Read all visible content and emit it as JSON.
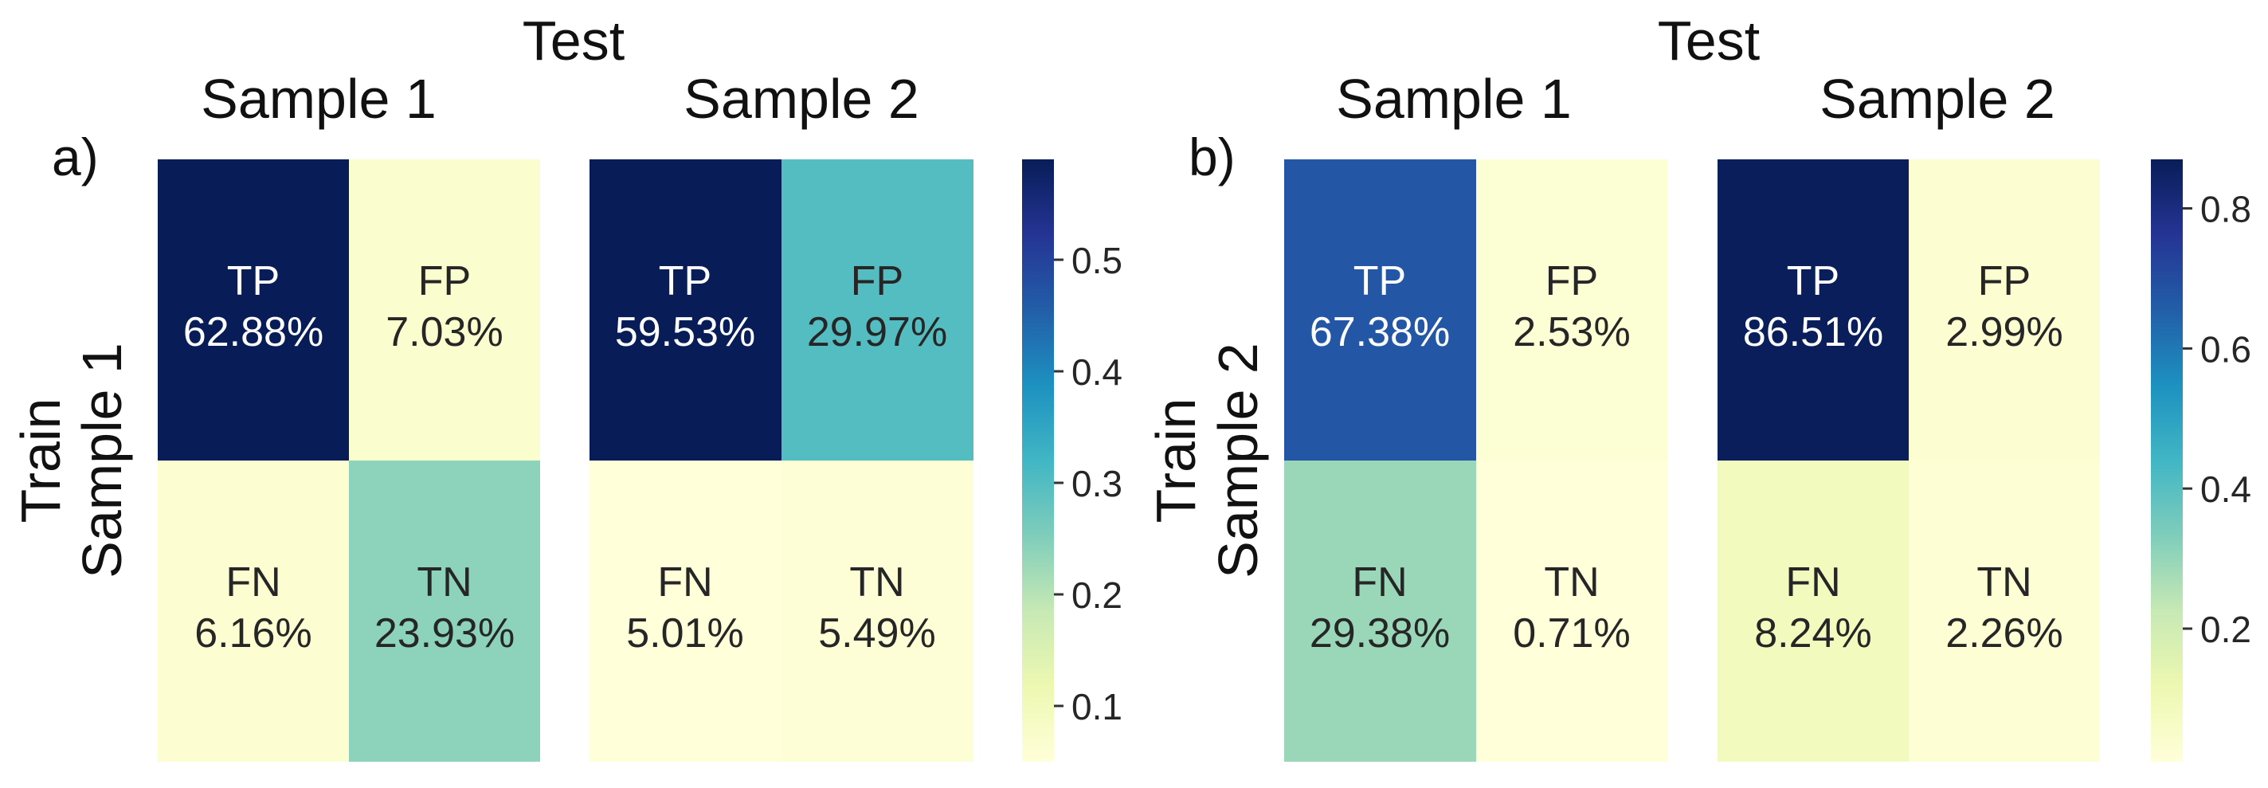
{
  "chart_data": [
    {
      "type": "heatmap",
      "panel_label": "a)",
      "column_title": "Test",
      "row_title": "Train",
      "row_label": "Sample 1",
      "colorbar": {
        "min": 0.05,
        "max": 0.59,
        "ticks": [
          "0.1",
          "0.2",
          "0.3",
          "0.4",
          "0.5"
        ],
        "tick_values": [
          0.1,
          0.2,
          0.3,
          0.4,
          0.5
        ]
      },
      "matrices": [
        {
          "column_label": "Sample 1",
          "cells": [
            {
              "label": "TP",
              "value_text": "62.88%",
              "value": 0.6288
            },
            {
              "label": "FP",
              "value_text": "7.03%",
              "value": 0.0703
            },
            {
              "label": "FN",
              "value_text": "6.16%",
              "value": 0.0616
            },
            {
              "label": "TN",
              "value_text": "23.93%",
              "value": 0.2393
            }
          ]
        },
        {
          "column_label": "Sample 2",
          "cells": [
            {
              "label": "TP",
              "value_text": "59.53%",
              "value": 0.5953
            },
            {
              "label": "FP",
              "value_text": "29.97%",
              "value": 0.2997
            },
            {
              "label": "FN",
              "value_text": "5.01%",
              "value": 0.0501
            },
            {
              "label": "TN",
              "value_text": "5.49%",
              "value": 0.0549
            }
          ]
        }
      ]
    },
    {
      "type": "heatmap",
      "panel_label": "b)",
      "column_title": "Test",
      "row_title": "Train",
      "row_label": "Sample 2",
      "colorbar": {
        "min": 0.01,
        "max": 0.87,
        "ticks": [
          "0.2",
          "0.4",
          "0.6",
          "0.8"
        ],
        "tick_values": [
          0.2,
          0.4,
          0.6,
          0.8
        ]
      },
      "matrices": [
        {
          "column_label": "Sample 1",
          "cells": [
            {
              "label": "TP",
              "value_text": "67.38%",
              "value": 0.6738
            },
            {
              "label": "FP",
              "value_text": "2.53%",
              "value": 0.0253
            },
            {
              "label": "FN",
              "value_text": "29.38%",
              "value": 0.2938
            },
            {
              "label": "TN",
              "value_text": "0.71%",
              "value": 0.0071
            }
          ]
        },
        {
          "column_label": "Sample 2",
          "cells": [
            {
              "label": "TP",
              "value_text": "86.51%",
              "value": 0.8651
            },
            {
              "label": "FP",
              "value_text": "2.99%",
              "value": 0.0299
            },
            {
              "label": "FN",
              "value_text": "8.24%",
              "value": 0.0824
            },
            {
              "label": "TN",
              "value_text": "2.26%",
              "value": 0.0226
            }
          ]
        }
      ]
    }
  ]
}
